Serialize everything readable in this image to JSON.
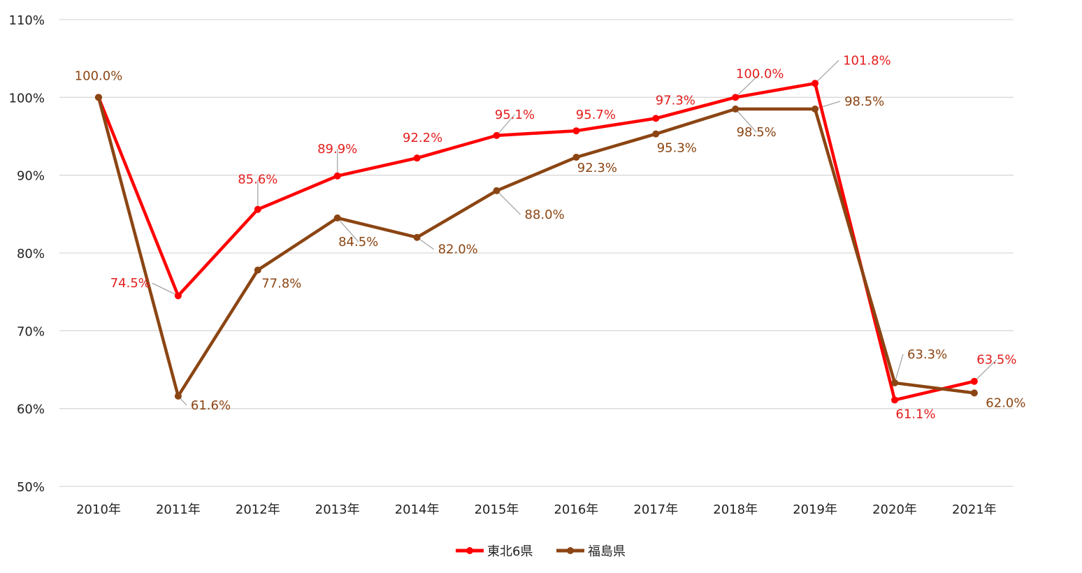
{
  "chart_data": {
    "type": "line",
    "categories": [
      "2010年",
      "2011年",
      "2012年",
      "2013年",
      "2014年",
      "2015年",
      "2016年",
      "2017年",
      "2018年",
      "2019年",
      "2020年",
      "2021年"
    ],
    "series": [
      {
        "name": "東北6県",
        "color": "#ff0000",
        "values": [
          100.0,
          74.5,
          85.6,
          89.9,
          92.2,
          95.1,
          95.7,
          97.3,
          100.0,
          101.8,
          61.1,
          63.5
        ],
        "labels": [
          "",
          "74.5%",
          "85.6%",
          "89.9%",
          "92.2%",
          "95.1%",
          "95.7%",
          "97.3%",
          "100.0%",
          "101.8%",
          "61.1%",
          "63.5%"
        ]
      },
      {
        "name": "福島県",
        "color": "#8b4513",
        "values": [
          100.0,
          61.6,
          77.8,
          84.5,
          82.0,
          88.0,
          92.3,
          95.3,
          98.5,
          98.5,
          63.3,
          62.0
        ],
        "labels": [
          "100.0%",
          "61.6%",
          "77.8%",
          "84.5%",
          "82.0%",
          "88.0%",
          "92.3%",
          "95.3%",
          "98.5%",
          "98.5%",
          "63.3%",
          "62.0%"
        ]
      }
    ],
    "yticks": [
      "50%",
      "60%",
      "70%",
      "80%",
      "90%",
      "100%",
      "110%"
    ],
    "ylim": [
      50,
      110
    ],
    "grid": true,
    "legend_position": "bottom",
    "label_color_series1": "#e31e1e",
    "label_color_series2": "#8b4513",
    "leader_line_color": "#a6a6a6"
  }
}
